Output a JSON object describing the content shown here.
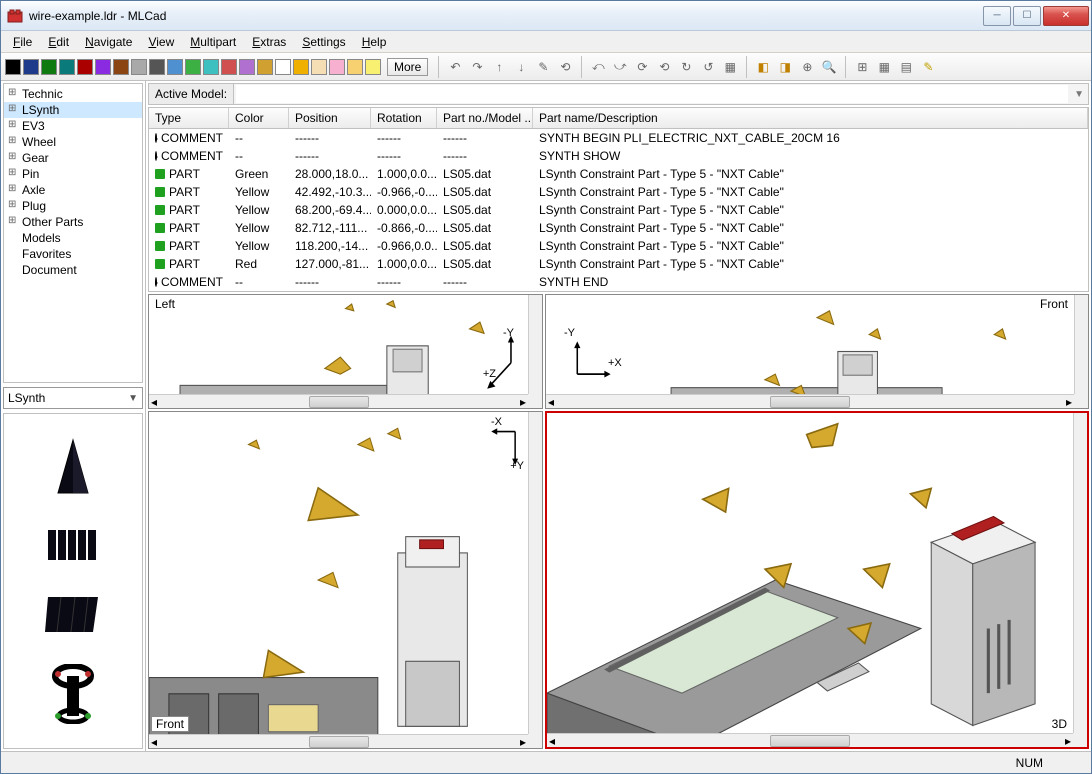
{
  "window": {
    "title": "wire-example.ldr - MLCad"
  },
  "menu": [
    "File",
    "Edit",
    "Navigate",
    "View",
    "Multipart",
    "Extras",
    "Settings",
    "Help"
  ],
  "toolbar": {
    "swatches": [
      "#000000",
      "#1e3a8a",
      "#0f7a0f",
      "#0a7a7a",
      "#aa0000",
      "#8a2be2",
      "#8b4513",
      "#a9a9a9",
      "#555555",
      "#4f90d0",
      "#3cb043",
      "#3fc0c0",
      "#d04f4f",
      "#b070d0",
      "#d0a030",
      "#ffffff",
      "#f0b000",
      "#f5deb3",
      "#f7b0d0",
      "#f7d070",
      "#f7f070"
    ],
    "more": "More"
  },
  "tree": {
    "nodes": [
      "Technic",
      "LSynth",
      "EV3",
      "Wheel",
      "Gear",
      "Pin",
      "Axle",
      "Plug",
      "Other Parts",
      "Models",
      "Favorites",
      "Document"
    ],
    "leafStart": 9,
    "selected": 1,
    "combo": "LSynth"
  },
  "activeModel": {
    "label": "Active Model:"
  },
  "table": {
    "columns": [
      "Type",
      "Color",
      "Position",
      "Rotation",
      "Part no./Model ...",
      "Part name/Description"
    ],
    "rows": [
      {
        "icon": "comment",
        "type": "COMMENT",
        "color": "--",
        "pos": "------",
        "rot": "------",
        "part": "------",
        "desc": "SYNTH BEGIN PLI_ELECTRIC_NXT_CABLE_20CM 16"
      },
      {
        "icon": "comment",
        "type": "COMMENT",
        "color": "--",
        "pos": "------",
        "rot": "------",
        "part": "------",
        "desc": "SYNTH SHOW"
      },
      {
        "icon": "part",
        "type": "PART",
        "color": "Green",
        "pos": "28.000,18.0...",
        "rot": "1.000,0.0...",
        "part": "LS05.dat",
        "desc": "LSynth Constraint Part - Type 5 - \"NXT Cable\""
      },
      {
        "icon": "part",
        "type": "PART",
        "color": "Yellow",
        "pos": "42.492,-10.3...",
        "rot": "-0.966,-0....",
        "part": "LS05.dat",
        "desc": "LSynth Constraint Part - Type 5 - \"NXT Cable\""
      },
      {
        "icon": "part",
        "type": "PART",
        "color": "Yellow",
        "pos": "68.200,-69.4...",
        "rot": "0.000,0.0...",
        "part": "LS05.dat",
        "desc": "LSynth Constraint Part - Type 5 - \"NXT Cable\""
      },
      {
        "icon": "part",
        "type": "PART",
        "color": "Yellow",
        "pos": "82.712,-111...",
        "rot": "-0.866,-0....",
        "part": "LS05.dat",
        "desc": "LSynth Constraint Part - Type 5 - \"NXT Cable\""
      },
      {
        "icon": "part",
        "type": "PART",
        "color": "Yellow",
        "pos": "118.200,-14...",
        "rot": "-0.966,0.0...",
        "part": "LS05.dat",
        "desc": "LSynth Constraint Part - Type 5 - \"NXT Cable\""
      },
      {
        "icon": "part",
        "type": "PART",
        "color": "Red",
        "pos": "127.000,-81...",
        "rot": "1.000,0.0...",
        "part": "LS05.dat",
        "desc": "LSynth Constraint Part - Type 5 - \"NXT Cable\""
      },
      {
        "icon": "comment",
        "type": "COMMENT",
        "color": "--",
        "pos": "------",
        "rot": "------",
        "part": "------",
        "desc": "SYNTH END"
      }
    ]
  },
  "views": {
    "tl": {
      "label": "Left",
      "ax1": "+Z",
      "ax2": "-Y"
    },
    "tr": {
      "label": "Front",
      "ax1": "+X",
      "ax2": "-Y"
    },
    "bl": {
      "label": "Front",
      "ax1": "-X",
      "ax2": "+Y"
    },
    "br": {
      "label": "3D"
    }
  },
  "status": {
    "num": "NUM"
  },
  "colors": {
    "constraint": "#d4a92e",
    "constraintEdge": "#8a6a10",
    "brickLight": "#e8e8e8",
    "brickMid": "#b0b0b0",
    "brickDark": "#7a7a7a",
    "screen": "#d9e8d4",
    "redClip": "#b02020"
  }
}
